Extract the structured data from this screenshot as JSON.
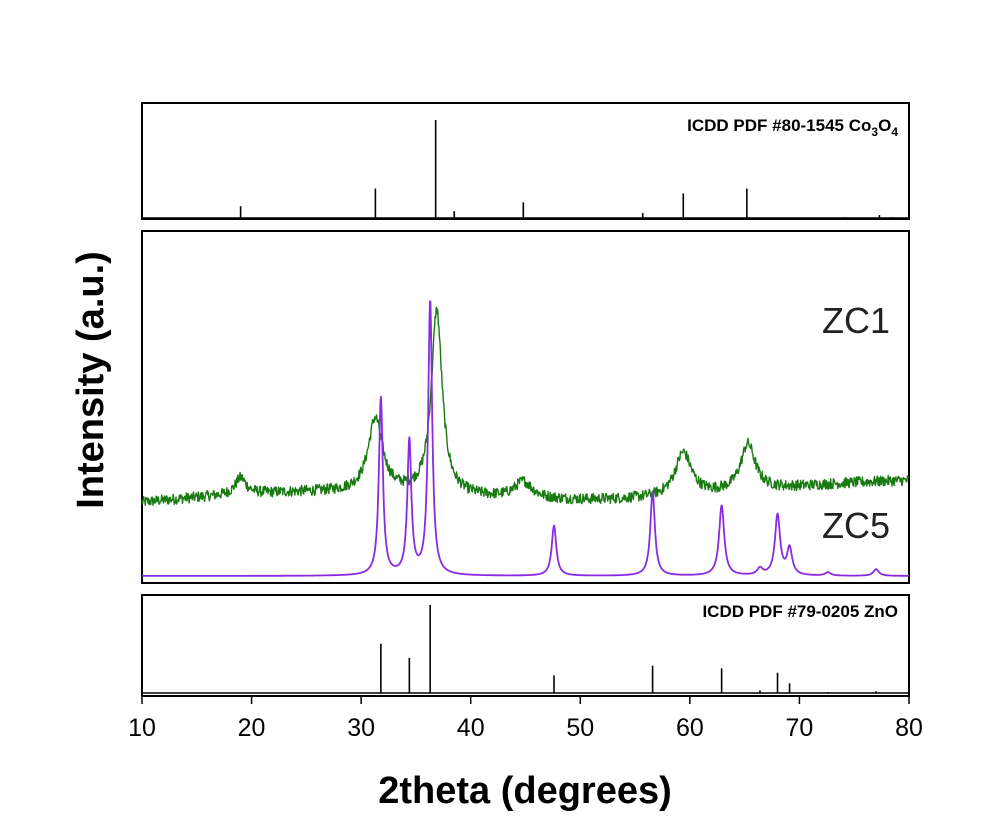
{
  "chart_data": {
    "type": "line",
    "xlabel": "2theta (degrees)",
    "ylabel": "Intensity (a.u.)",
    "xlim": [
      10,
      80
    ],
    "x_ticks": [
      10,
      20,
      30,
      40,
      50,
      60,
      70,
      80
    ],
    "x_tick_labels": [
      "10",
      "20",
      "30",
      "40",
      "50",
      "60",
      "70",
      "80"
    ],
    "panels": [
      "ICDD PDF #80-1545 Co3O4",
      "ZC1 / ZC5",
      "ICDD PDF #79-0205 ZnO"
    ],
    "reference_top": {
      "label_main": "ICDD PDF #80-1545 Co",
      "label_sub1": "3",
      "label_mid": "O",
      "label_sub2": "4",
      "peaks": [
        {
          "x": 19.0,
          "intensity": 0.12
        },
        {
          "x": 31.3,
          "intensity": 0.3
        },
        {
          "x": 36.8,
          "intensity": 1.0
        },
        {
          "x": 38.5,
          "intensity": 0.07
        },
        {
          "x": 44.8,
          "intensity": 0.16
        },
        {
          "x": 55.7,
          "intensity": 0.05
        },
        {
          "x": 59.4,
          "intensity": 0.25
        },
        {
          "x": 65.2,
          "intensity": 0.3
        },
        {
          "x": 74.2,
          "intensity": 0.01
        },
        {
          "x": 77.3,
          "intensity": 0.03
        },
        {
          "x": 78.4,
          "intensity": 0.01
        }
      ]
    },
    "series": [
      {
        "name": "ZC1",
        "color": "#1a7a12",
        "baseline": 0.22,
        "noise": 0.016,
        "peaks": [
          {
            "x": 19.0,
            "height": 0.05,
            "width": 0.6
          },
          {
            "x": 31.3,
            "height": 0.22,
            "width": 0.8
          },
          {
            "x": 36.9,
            "height": 0.55,
            "width": 0.6
          },
          {
            "x": 44.8,
            "height": 0.05,
            "width": 1.0
          },
          {
            "x": 59.4,
            "height": 0.13,
            "width": 0.9
          },
          {
            "x": 65.3,
            "height": 0.14,
            "width": 0.8
          }
        ]
      },
      {
        "name": "ZC5",
        "color": "#8a2be2",
        "baseline": 0.0,
        "noise": 0.0,
        "peaks": [
          {
            "x": 31.8,
            "height": 0.53,
            "width": 0.22
          },
          {
            "x": 34.4,
            "height": 0.4,
            "width": 0.22
          },
          {
            "x": 36.3,
            "height": 0.82,
            "width": 0.22
          },
          {
            "x": 47.6,
            "height": 0.15,
            "width": 0.25
          },
          {
            "x": 56.6,
            "height": 0.25,
            "width": 0.25
          },
          {
            "x": 62.9,
            "height": 0.21,
            "width": 0.28
          },
          {
            "x": 66.4,
            "height": 0.02,
            "width": 0.3
          },
          {
            "x": 68.0,
            "height": 0.18,
            "width": 0.28
          },
          {
            "x": 69.1,
            "height": 0.08,
            "width": 0.28
          },
          {
            "x": 72.6,
            "height": 0.01,
            "width": 0.3
          },
          {
            "x": 77.0,
            "height": 0.02,
            "width": 0.3
          }
        ]
      }
    ],
    "reference_bottom": {
      "label": "ICDD PDF #79-0205 ZnO",
      "peaks": [
        {
          "x": 31.8,
          "intensity": 0.56
        },
        {
          "x": 34.4,
          "intensity": 0.4
        },
        {
          "x": 36.3,
          "intensity": 1.0
        },
        {
          "x": 47.6,
          "intensity": 0.2
        },
        {
          "x": 56.6,
          "intensity": 0.31
        },
        {
          "x": 62.9,
          "intensity": 0.28
        },
        {
          "x": 66.4,
          "intensity": 0.03
        },
        {
          "x": 68.0,
          "intensity": 0.23
        },
        {
          "x": 69.1,
          "intensity": 0.11
        },
        {
          "x": 72.6,
          "intensity": 0.01
        },
        {
          "x": 77.0,
          "intensity": 0.02
        }
      ]
    }
  }
}
